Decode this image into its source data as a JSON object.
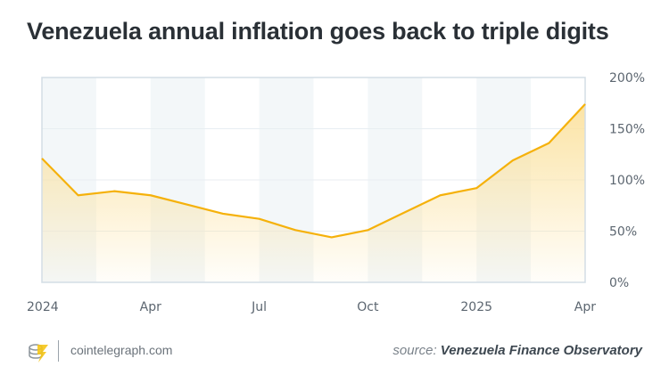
{
  "chart_data": {
    "type": "area",
    "title": "Venezuela annual inflation goes back to triple digits",
    "x": [
      "2024-01",
      "2024-02",
      "2024-03",
      "2024-04",
      "2024-05",
      "2024-06",
      "2024-07",
      "2024-08",
      "2024-09",
      "2024-10",
      "2024-11",
      "2024-12",
      "2025-01",
      "2025-02",
      "2025-03",
      "2025-04"
    ],
    "values": [
      121,
      85,
      89,
      85,
      76,
      67,
      62,
      51,
      44,
      51,
      68,
      85,
      92,
      119,
      136,
      174
    ],
    "x_tick_labels": [
      "2024",
      "Apr",
      "Jul",
      "Oct",
      "2025",
      "Apr"
    ],
    "y_tick_labels": [
      "0%",
      "50%",
      "100%",
      "150%",
      "200%"
    ],
    "ylim": [
      0,
      200
    ],
    "y_axis_side": "right",
    "grid": true,
    "line_color": "#f5b10b",
    "fill_color": "#fbe2a0",
    "band_color": "#f3f7f9"
  },
  "footer": {
    "site": "cointelegraph.com",
    "source_prefix": "source:",
    "source_name": "Venezuela Finance Observatory"
  }
}
